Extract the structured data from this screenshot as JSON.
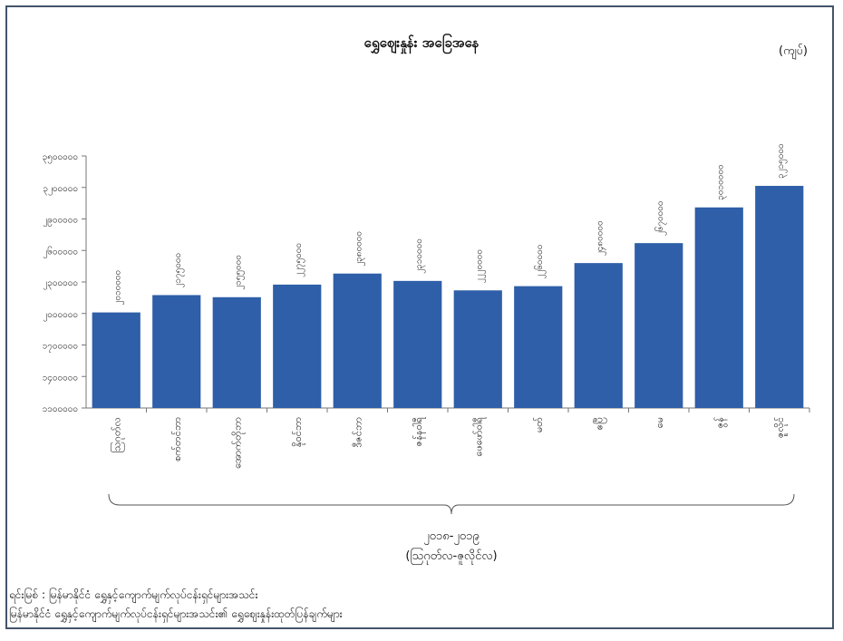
{
  "chart_data": {
    "type": "bar",
    "title": "ရွှေဈေးနှုန်း အခြေအနေ",
    "unit_label": "(ကျပ်)",
    "categories": [
      "ဩဂုတ်လ",
      "စက်တင်ဘာ",
      "အောက်တိုဘာ",
      "နိုဝင်ဘာ",
      "ဒီဇင်ဘာ",
      "ဇန်နဝါရီ",
      "ဖေဖော်ဝါရီ",
      "မတ်",
      "ဧပြီ",
      "မေ",
      "ဇွန်",
      "ဇူလိုင်"
    ],
    "values": [
      2010000,
      2175000,
      2155000,
      2275000,
      2380000,
      2310000,
      2220000,
      2260000,
      2480000,
      2670000,
      3010000,
      3215000
    ],
    "data_labels": [
      "၂၀၁၀၀၀၀",
      "၂၁၇၅၀၀၀",
      "၂၁၅၅၀၀၀",
      "၂၂၇၅၀၀၀",
      "၂၃၈၀၀၀၀",
      "၂၃၁၀၀၀၀",
      "၂၂၂၀၀၀၀",
      "၂၂၆၀၀၀၀",
      "၂၄၈၀၀၀၀",
      "၂၆၇၀၀၀၀",
      "၃၀၁၀၀၀၀",
      "၃၂၁၅၀၀၀"
    ],
    "ylim": [
      1100000,
      3500000
    ],
    "yticks": [
      1100000,
      1400000,
      1700000,
      2000000,
      2300000,
      2600000,
      2900000,
      3200000,
      3500000
    ],
    "ytick_labels": [
      "၁၁၀၀၀၀၀",
      "၁၄၀၀၀၀၀",
      "၁၇၀၀၀၀၀",
      "၂၀၀၀၀၀၀",
      "၂၃၀၀၀၀၀",
      "၂၆၀၀၀၀၀",
      "၂၉၀၀၀၀၀",
      "၃၂၀၀၀၀၀",
      "၃၅၀၀၀၀၀"
    ],
    "bar_color": "#2e5fa8",
    "grid": false,
    "legend": "none",
    "group_label_line1": "၂၀၁၈-၂၀၁၉",
    "group_label_line2": "(ဩဂုတ်လ-ဇူလိုင်လ)"
  },
  "source_line1": "ရင်းမြစ် : မြန်မာနိုင်ငံ ရွှေနှင့်ကျောက်မျက်လုပ်ငန်းရှင်များအသင်း",
  "source_line2": "မြန်မာနိုင်ငံ ရွှေနှင့်ကျောက်မျက်လုပ်ငန်းရှင်များအသင်း၏ ရွှေဈေးနှုန်းထုတ်ပြန်ချက်များ"
}
